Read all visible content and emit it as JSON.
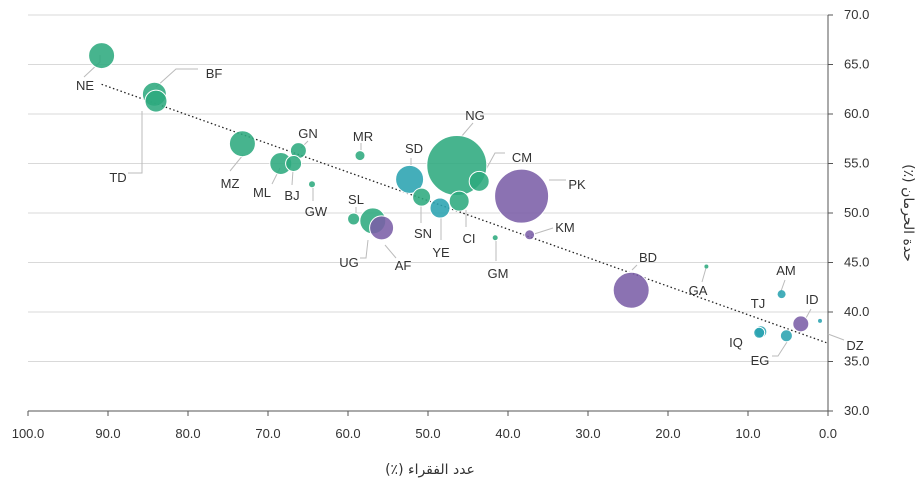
{
  "chart_data": {
    "type": "scatter",
    "xlabel": "عدد الفقراء (٪)",
    "ylabel": "حدة الحرمان (٪)",
    "xlim": [
      100,
      0
    ],
    "ylim": [
      30,
      70
    ],
    "x_reversed": true,
    "y_axis_side": "right",
    "grid": "horizontal",
    "x_ticks": [
      100,
      90,
      80,
      70,
      60,
      50,
      40,
      30,
      20,
      10,
      0
    ],
    "x_tick_labels": [
      "100.0",
      "90.0",
      "80.0",
      "70.0",
      "60.0",
      "50.0",
      "40.0",
      "30.0",
      "20.0",
      "10.0",
      "0.0"
    ],
    "y_ticks": [
      30,
      35,
      40,
      45,
      50,
      55,
      60,
      65,
      70
    ],
    "y_tick_labels": [
      "30.0",
      "35.0",
      "40.0",
      "45.0",
      "50.0",
      "55.0",
      "60.0",
      "65.0",
      "70.0"
    ],
    "trendline": {
      "style": "dotted",
      "x": [
        90.8,
        0.2
      ],
      "y": [
        63.0,
        36.9
      ]
    },
    "colors": {
      "green": "#2eaa7e",
      "teal": "#2aa3b1",
      "purple": "#7b5ea7",
      "grid": "#d9d9d9",
      "trend": "#222222",
      "leader": "#bbbbbb"
    },
    "points": [
      {
        "label": "NE",
        "x": 90.8,
        "y": 65.9,
        "size": 13,
        "color": "green"
      },
      {
        "label": "BF",
        "x": 84.2,
        "y": 62.0,
        "size": 12,
        "color": "green"
      },
      {
        "label": "TD",
        "x": 84.0,
        "y": 61.3,
        "size": 11,
        "color": "green"
      },
      {
        "label": "MZ",
        "x": 73.2,
        "y": 57.0,
        "size": 13,
        "color": "green"
      },
      {
        "label": "GN",
        "x": 66.2,
        "y": 56.3,
        "size": 8,
        "color": "green"
      },
      {
        "label": "ML",
        "x": 68.4,
        "y": 55.0,
        "size": 11,
        "color": "green"
      },
      {
        "label": "BJ",
        "x": 66.8,
        "y": 55.0,
        "size": 8,
        "color": "green"
      },
      {
        "label": "MR",
        "x": 58.5,
        "y": 55.8,
        "size": 5,
        "color": "green"
      },
      {
        "label": "GW",
        "x": 64.5,
        "y": 52.9,
        "size": 3,
        "color": "green"
      },
      {
        "label": "SD",
        "x": 52.3,
        "y": 53.4,
        "size": 14,
        "color": "teal"
      },
      {
        "label": "NG",
        "x": 46.4,
        "y": 54.8,
        "size": 30,
        "color": "green"
      },
      {
        "label": "CM",
        "x": 43.6,
        "y": 53.2,
        "size": 10,
        "color": "green"
      },
      {
        "label": "PK",
        "x": 38.3,
        "y": 51.7,
        "size": 27,
        "color": "purple"
      },
      {
        "label": "SN",
        "x": 50.8,
        "y": 51.6,
        "size": 9,
        "color": "green"
      },
      {
        "label": "CI",
        "x": 46.1,
        "y": 51.2,
        "size": 10,
        "color": "green"
      },
      {
        "label": "YE",
        "x": 48.5,
        "y": 50.5,
        "size": 10,
        "color": "teal"
      },
      {
        "label": "SL",
        "x": 59.3,
        "y": 49.4,
        "size": 6,
        "color": "green"
      },
      {
        "label": "UG",
        "x": 56.9,
        "y": 49.2,
        "size": 13,
        "color": "green"
      },
      {
        "label": "AF",
        "x": 55.8,
        "y": 48.5,
        "size": 12,
        "color": "purple"
      },
      {
        "label": "KM",
        "x": 37.3,
        "y": 47.8,
        "size": 5,
        "color": "purple"
      },
      {
        "label": "GM",
        "x": 41.6,
        "y": 47.5,
        "size": 2.5,
        "color": "green"
      },
      {
        "label": "BD",
        "x": 24.6,
        "y": 42.2,
        "size": 18,
        "color": "purple"
      },
      {
        "label": "GA",
        "x": 15.2,
        "y": 44.6,
        "size": 2,
        "color": "green"
      },
      {
        "label": "AM",
        "x": 5.8,
        "y": 41.8,
        "size": 4,
        "color": "teal"
      },
      {
        "label": "TJ",
        "x": 8.4,
        "y": 38.0,
        "size": 6,
        "color": "teal"
      },
      {
        "label": "ID",
        "x": 3.4,
        "y": 38.8,
        "size": 8,
        "color": "purple"
      },
      {
        "label": "EG",
        "x": 5.2,
        "y": 37.6,
        "size": 6,
        "color": "teal"
      },
      {
        "label": "IQ",
        "x": 8.6,
        "y": 37.9,
        "size": 5.5,
        "color": "teal"
      },
      {
        "label": "DZ",
        "x": 1.0,
        "y": 39.1,
        "size": 2,
        "color": "teal"
      }
    ]
  }
}
